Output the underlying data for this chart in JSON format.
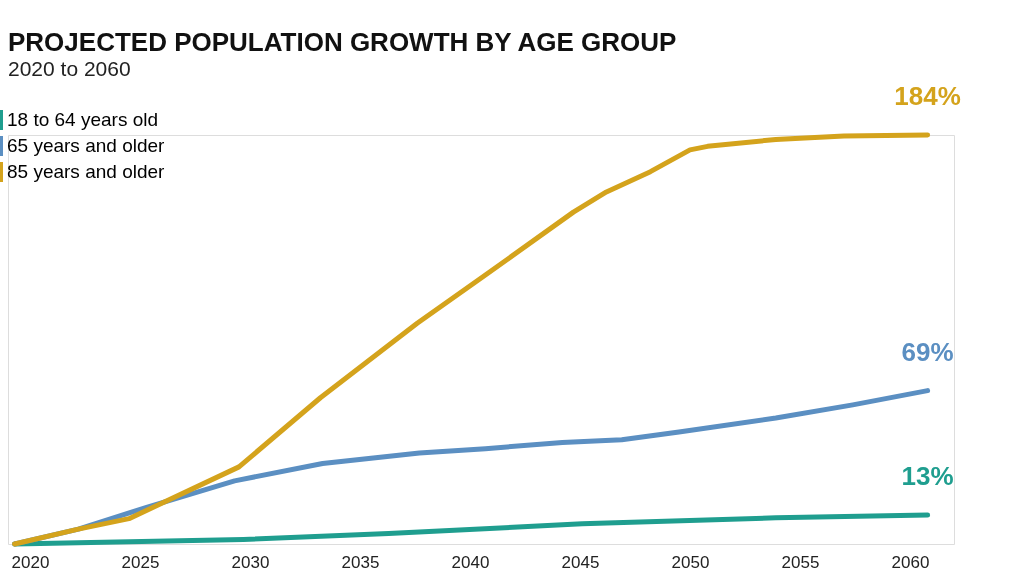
{
  "chart_data": {
    "type": "line",
    "title": "PROJECTED POPULATION GROWTH BY AGE GROUP",
    "subtitle": "2020 to 2060",
    "series": [
      {
        "name": "18 to 64 years old",
        "color": "#1f9e8f",
        "x": [
          2019.3,
          2029.7,
          2036.3,
          2045.1,
          2053.9,
          2060.8
        ],
        "values": [
          0,
          2,
          4.7,
          9.1,
          11.8,
          13
        ],
        "value_labels": [
          null,
          null,
          null,
          null,
          null,
          "13%"
        ]
      },
      {
        "name": "65 years and older",
        "color": "#5b8fc2",
        "x": [
          2019.3,
          2022.2,
          2025.3,
          2029.3,
          2033.3,
          2037.7,
          2040.7,
          2044.2,
          2046.9,
          2049.5,
          2053.9,
          2057.4,
          2060.8
        ],
        "values": [
          0,
          6.7,
          16.5,
          28.4,
          36.2,
          40.9,
          42.9,
          45.7,
          46.9,
          50.4,
          56.7,
          62.6,
          69
        ],
        "value_labels": [
          null,
          null,
          null,
          null,
          null,
          null,
          null,
          null,
          null,
          null,
          null,
          null,
          "69%"
        ]
      },
      {
        "name": "85 years and older",
        "color": "#d4a31c",
        "x": [
          2019.3,
          2022.2,
          2024.5,
          2029.5,
          2033.2,
          2037.6,
          2040.7,
          2044.7,
          2046.2,
          2048.2,
          2050.0,
          2050.8,
          2053.9,
          2057.0,
          2060.8
        ],
        "values": [
          0,
          6.7,
          11.4,
          34.7,
          65.8,
          99.3,
          121,
          149.3,
          158.4,
          167.5,
          177.3,
          178.9,
          182,
          183.6,
          184
        ],
        "value_labels": [
          null,
          null,
          null,
          null,
          null,
          null,
          null,
          null,
          null,
          null,
          null,
          null,
          null,
          null,
          "184%"
        ]
      }
    ],
    "xlim": [
      2019,
      2062
    ],
    "xticks": [
      2020,
      2025,
      2030,
      2035,
      2040,
      2045,
      2050,
      2055,
      2060
    ],
    "ylim": [
      0,
      184
    ],
    "tick_labels": "x",
    "grid": false,
    "legend": "top left",
    "marker": "none",
    "line_style": "solid"
  }
}
